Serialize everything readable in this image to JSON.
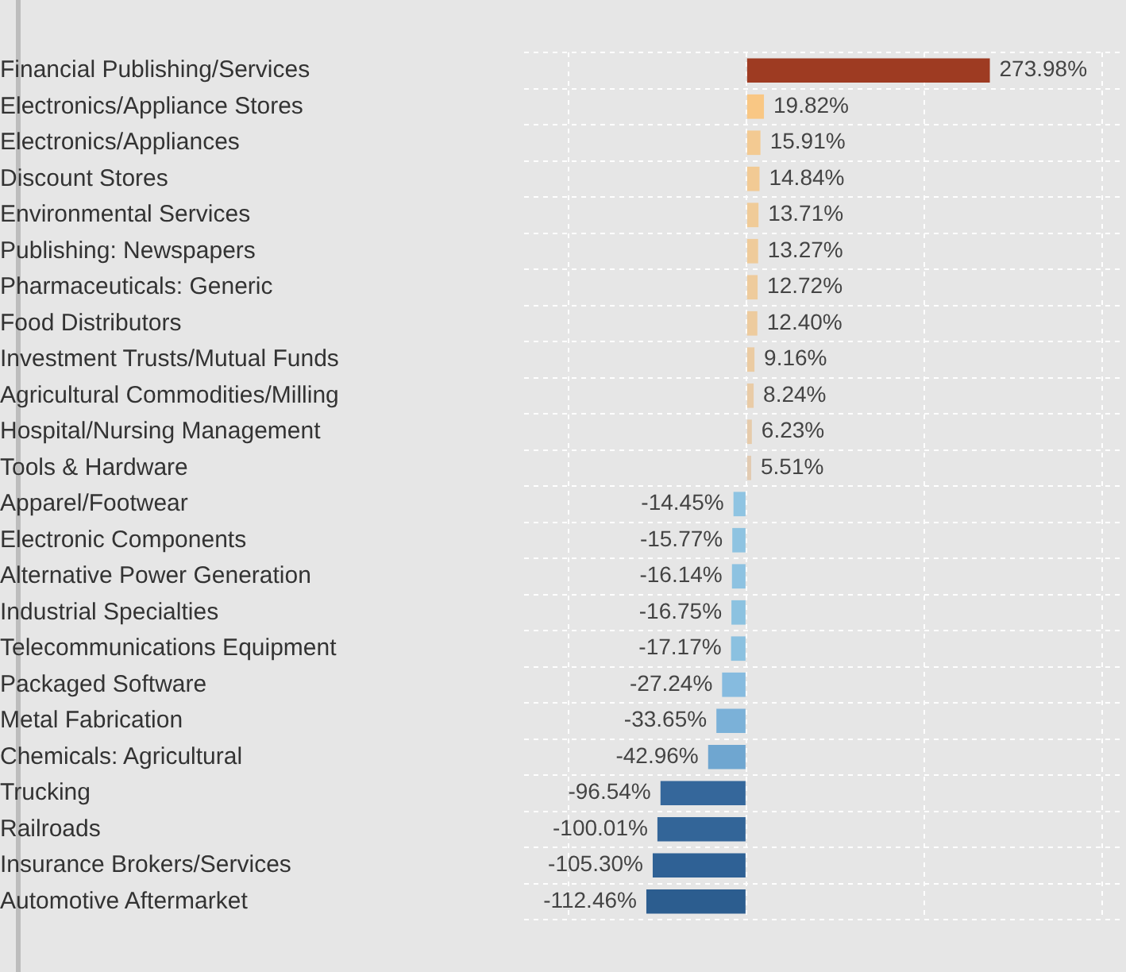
{
  "chart_data": {
    "type": "bar",
    "orientation": "horizontal",
    "categories": [
      "Financial Publishing/Services",
      "Electronics/Appliance Stores",
      "Electronics/Appliances",
      "Discount Stores",
      "Environmental Services",
      "Publishing: Newspapers",
      "Pharmaceuticals: Generic",
      "Food Distributors",
      "Investment Trusts/Mutual Funds",
      "Agricultural Commodities/Milling",
      "Hospital/Nursing Management",
      "Tools & Hardware",
      "Apparel/Footwear",
      "Electronic Components",
      "Alternative Power Generation",
      "Industrial Specialties",
      "Telecommunications Equipment",
      "Packaged Software",
      "Metal Fabrication",
      "Chemicals: Agricultural",
      "Trucking",
      "Railroads",
      "Insurance Brokers/Services",
      "Automotive Aftermarket"
    ],
    "values": [
      273.98,
      19.82,
      15.91,
      14.84,
      13.71,
      13.27,
      12.72,
      12.4,
      9.16,
      8.24,
      6.23,
      5.51,
      -14.45,
      -15.77,
      -16.14,
      -16.75,
      -17.17,
      -27.24,
      -33.65,
      -42.96,
      -96.54,
      -100.01,
      -105.3,
      -112.46
    ],
    "value_labels": [
      "273.98%",
      "19.82%",
      "15.91%",
      "14.84%",
      "13.71%",
      "13.27%",
      "12.72%",
      "12.40%",
      "9.16%",
      "8.24%",
      "6.23%",
      "5.51%",
      "-14.45%",
      "-15.77%",
      "-16.14%",
      "-16.75%",
      "-17.17%",
      "-27.24%",
      "-33.65%",
      "-42.96%",
      "-96.54%",
      "-100.01%",
      "-105.30%",
      "-112.46%"
    ],
    "colors": [
      "#9e3b22",
      "#f9c784",
      "#f3ca92",
      "#f2ca94",
      "#f0cb98",
      "#efcb9a",
      "#eecb9c",
      "#edcb9e",
      "#ebcba2",
      "#e9cba6",
      "#e6cbab",
      "#e2cbb2",
      "#8fc4e2",
      "#8ec3e1",
      "#8dc2e1",
      "#8cc2e0",
      "#8bc1e0",
      "#86bbdf",
      "#7bb1d8",
      "#6fa6d0",
      "#35679b",
      "#336598",
      "#2f6195",
      "#2c5d8f"
    ],
    "xlim": [
      -250,
      420
    ],
    "xticks": [
      {
        "value": -200,
        "label": null
      },
      {
        "value": 0,
        "label": null
      },
      {
        "value": 200,
        "label": null
      },
      {
        "value": 400,
        "label": null
      }
    ],
    "tick_labels": "y",
    "grid": true,
    "legend": false
  }
}
